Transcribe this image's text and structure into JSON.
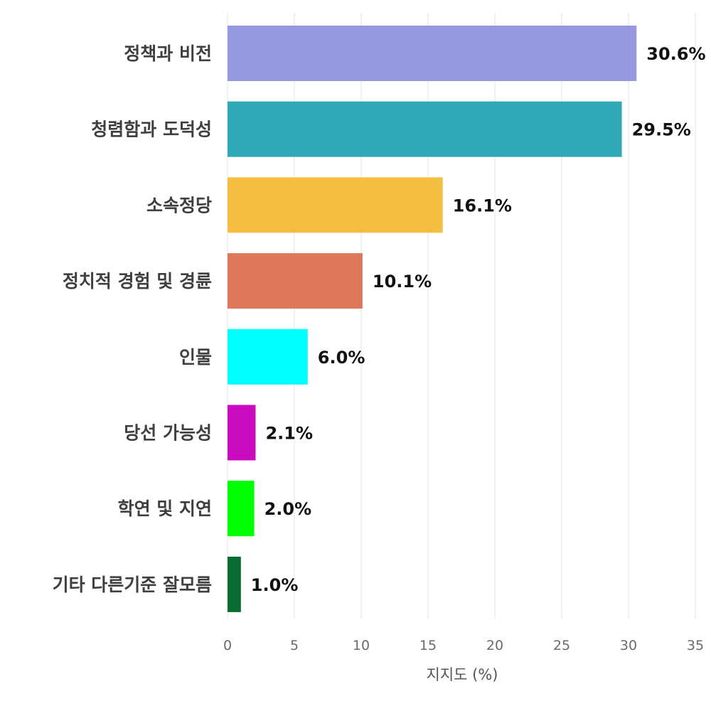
{
  "chart_data": {
    "type": "bar",
    "orientation": "horizontal",
    "categories": [
      "정책과 비전",
      "청렴함과 도덕성",
      "소속정당",
      "정치적 경험 및 경륜",
      "인물",
      "당선 가능성",
      "학연 및 지연",
      "기타 다른기준 잘모름"
    ],
    "values": [
      30.6,
      29.5,
      16.1,
      10.1,
      6.0,
      2.1,
      2.0,
      1.0
    ],
    "value_labels": [
      "30.6%",
      "29.5%",
      "16.1%",
      "10.1%",
      "6.0%",
      "2.1%",
      "2.0%",
      "1.0%"
    ],
    "colors": [
      "#9799e0",
      "#31a8b8",
      "#f5be41",
      "#dd785c",
      "#00ffff",
      "#c90bbf",
      "#00ff00",
      "#0a6b32"
    ],
    "xlabel": "지지도 (%)",
    "xlim": [
      0,
      35
    ],
    "xticks": [
      0,
      5,
      10,
      15,
      20,
      25,
      30,
      35
    ],
    "tick_labels": [
      "0",
      "5",
      "10",
      "15",
      "20",
      "25",
      "30",
      "35"
    ],
    "grid": true
  }
}
